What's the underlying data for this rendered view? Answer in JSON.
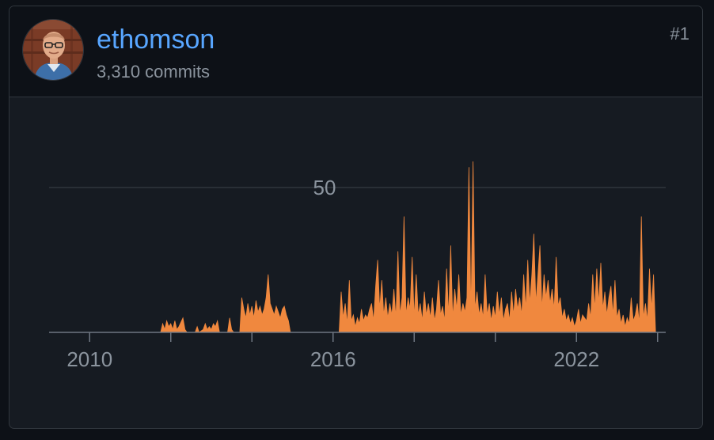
{
  "contributor": {
    "username": "ethomson",
    "commits_text": "3,310 commits",
    "rank": "#1"
  },
  "colors": {
    "accent": "#58a6ff",
    "area": "#f0883e",
    "grid": "#30363d",
    "muted": "#8b949e"
  },
  "chart_data": {
    "type": "area",
    "title": "",
    "xlabel": "",
    "ylabel": "",
    "ylim": [
      0,
      62
    ],
    "xlim": [
      2009,
      2024.2
    ],
    "y_ticks": [
      {
        "value": 50,
        "label": "50"
      }
    ],
    "x_ticks": [
      {
        "value": 2010,
        "label": "2010"
      },
      {
        "value": 2016,
        "label": "2016"
      },
      {
        "value": 2022,
        "label": "2022"
      }
    ],
    "x_minor_ticks": [
      2012,
      2014,
      2018,
      2020,
      2024
    ],
    "grid": true,
    "series": [
      {
        "values": [
          [
            2011.75,
            0
          ],
          [
            2011.8,
            3
          ],
          [
            2011.85,
            1
          ],
          [
            2011.9,
            4
          ],
          [
            2011.95,
            2
          ],
          [
            2012.0,
            3
          ],
          [
            2012.05,
            1
          ],
          [
            2012.1,
            4
          ],
          [
            2012.15,
            1
          ],
          [
            2012.2,
            2
          ],
          [
            2012.3,
            5
          ],
          [
            2012.35,
            1
          ],
          [
            2012.4,
            0
          ],
          [
            2012.6,
            0
          ],
          [
            2012.65,
            2
          ],
          [
            2012.7,
            0
          ],
          [
            2012.8,
            1
          ],
          [
            2012.85,
            3
          ],
          [
            2012.9,
            1
          ],
          [
            2012.95,
            2
          ],
          [
            2013.0,
            1
          ],
          [
            2013.05,
            3
          ],
          [
            2013.1,
            2
          ],
          [
            2013.15,
            4
          ],
          [
            2013.2,
            0
          ],
          [
            2013.4,
            0
          ],
          [
            2013.45,
            5
          ],
          [
            2013.5,
            1
          ],
          [
            2013.55,
            0
          ],
          [
            2013.7,
            0
          ],
          [
            2013.75,
            12
          ],
          [
            2013.8,
            8
          ],
          [
            2013.85,
            5
          ],
          [
            2013.9,
            10
          ],
          [
            2013.95,
            6
          ],
          [
            2014.0,
            9
          ],
          [
            2014.05,
            5
          ],
          [
            2014.1,
            11
          ],
          [
            2014.15,
            7
          ],
          [
            2014.2,
            9
          ],
          [
            2014.25,
            6
          ],
          [
            2014.3,
            8
          ],
          [
            2014.35,
            12
          ],
          [
            2014.4,
            20
          ],
          [
            2014.45,
            10
          ],
          [
            2014.5,
            8
          ],
          [
            2014.55,
            6
          ],
          [
            2014.6,
            9
          ],
          [
            2014.65,
            7
          ],
          [
            2014.7,
            5
          ],
          [
            2014.75,
            8
          ],
          [
            2014.8,
            9
          ],
          [
            2014.85,
            6
          ],
          [
            2014.9,
            4
          ],
          [
            2014.95,
            0
          ],
          [
            2016.15,
            0
          ],
          [
            2016.2,
            14
          ],
          [
            2016.25,
            5
          ],
          [
            2016.3,
            10
          ],
          [
            2016.35,
            3
          ],
          [
            2016.4,
            18
          ],
          [
            2016.45,
            4
          ],
          [
            2016.5,
            6
          ],
          [
            2016.55,
            2
          ],
          [
            2016.6,
            5
          ],
          [
            2016.65,
            3
          ],
          [
            2016.7,
            8
          ],
          [
            2016.75,
            4
          ],
          [
            2016.8,
            6
          ],
          [
            2016.85,
            5
          ],
          [
            2016.9,
            8
          ],
          [
            2016.95,
            10
          ],
          [
            2017.0,
            4
          ],
          [
            2017.05,
            16
          ],
          [
            2017.1,
            25
          ],
          [
            2017.15,
            8
          ],
          [
            2017.2,
            18
          ],
          [
            2017.25,
            6
          ],
          [
            2017.3,
            12
          ],
          [
            2017.35,
            5
          ],
          [
            2017.4,
            10
          ],
          [
            2017.45,
            6
          ],
          [
            2017.5,
            15
          ],
          [
            2017.55,
            5
          ],
          [
            2017.6,
            28
          ],
          [
            2017.65,
            6
          ],
          [
            2017.7,
            12
          ],
          [
            2017.75,
            40
          ],
          [
            2017.8,
            6
          ],
          [
            2017.85,
            12
          ],
          [
            2017.9,
            8
          ],
          [
            2017.95,
            26
          ],
          [
            2018.0,
            5
          ],
          [
            2018.05,
            20
          ],
          [
            2018.1,
            6
          ],
          [
            2018.15,
            10
          ],
          [
            2018.2,
            4
          ],
          [
            2018.25,
            14
          ],
          [
            2018.3,
            6
          ],
          [
            2018.35,
            10
          ],
          [
            2018.4,
            5
          ],
          [
            2018.45,
            12
          ],
          [
            2018.5,
            4
          ],
          [
            2018.55,
            8
          ],
          [
            2018.6,
            18
          ],
          [
            2018.65,
            6
          ],
          [
            2018.7,
            9
          ],
          [
            2018.75,
            4
          ],
          [
            2018.8,
            22
          ],
          [
            2018.85,
            6
          ],
          [
            2018.9,
            30
          ],
          [
            2018.95,
            5
          ],
          [
            2019.0,
            15
          ],
          [
            2019.05,
            8
          ],
          [
            2019.1,
            20
          ],
          [
            2019.15,
            6
          ],
          [
            2019.2,
            10
          ],
          [
            2019.25,
            7
          ],
          [
            2019.3,
            12
          ],
          [
            2019.35,
            57
          ],
          [
            2019.4,
            6
          ],
          [
            2019.45,
            59
          ],
          [
            2019.5,
            8
          ],
          [
            2019.55,
            14
          ],
          [
            2019.6,
            6
          ],
          [
            2019.65,
            10
          ],
          [
            2019.7,
            5
          ],
          [
            2019.75,
            20
          ],
          [
            2019.8,
            6
          ],
          [
            2019.85,
            10
          ],
          [
            2019.9,
            4
          ],
          [
            2019.95,
            9
          ],
          [
            2020.0,
            5
          ],
          [
            2020.05,
            14
          ],
          [
            2020.1,
            6
          ],
          [
            2020.15,
            12
          ],
          [
            2020.2,
            4
          ],
          [
            2020.25,
            8
          ],
          [
            2020.3,
            10
          ],
          [
            2020.35,
            4
          ],
          [
            2020.4,
            14
          ],
          [
            2020.45,
            6
          ],
          [
            2020.5,
            15
          ],
          [
            2020.55,
            8
          ],
          [
            2020.6,
            12
          ],
          [
            2020.65,
            6
          ],
          [
            2020.7,
            20
          ],
          [
            2020.75,
            8
          ],
          [
            2020.8,
            25
          ],
          [
            2020.85,
            10
          ],
          [
            2020.9,
            20
          ],
          [
            2020.95,
            34
          ],
          [
            2021.0,
            10
          ],
          [
            2021.05,
            20
          ],
          [
            2021.1,
            30
          ],
          [
            2021.15,
            8
          ],
          [
            2021.2,
            20
          ],
          [
            2021.25,
            12
          ],
          [
            2021.3,
            18
          ],
          [
            2021.35,
            10
          ],
          [
            2021.4,
            15
          ],
          [
            2021.45,
            8
          ],
          [
            2021.5,
            26
          ],
          [
            2021.55,
            9
          ],
          [
            2021.6,
            12
          ],
          [
            2021.65,
            5
          ],
          [
            2021.7,
            8
          ],
          [
            2021.75,
            4
          ],
          [
            2021.8,
            6
          ],
          [
            2021.85,
            3
          ],
          [
            2021.9,
            5
          ],
          [
            2021.95,
            2
          ],
          [
            2022.0,
            4
          ],
          [
            2022.05,
            8
          ],
          [
            2022.1,
            3
          ],
          [
            2022.15,
            6
          ],
          [
            2022.2,
            5
          ],
          [
            2022.25,
            4
          ],
          [
            2022.3,
            10
          ],
          [
            2022.35,
            5
          ],
          [
            2022.4,
            20
          ],
          [
            2022.45,
            8
          ],
          [
            2022.5,
            22
          ],
          [
            2022.55,
            10
          ],
          [
            2022.6,
            24
          ],
          [
            2022.65,
            8
          ],
          [
            2022.7,
            14
          ],
          [
            2022.75,
            6
          ],
          [
            2022.8,
            12
          ],
          [
            2022.85,
            16
          ],
          [
            2022.9,
            6
          ],
          [
            2022.95,
            18
          ],
          [
            2023.0,
            5
          ],
          [
            2023.05,
            8
          ],
          [
            2023.1,
            3
          ],
          [
            2023.15,
            6
          ],
          [
            2023.2,
            2
          ],
          [
            2023.25,
            5
          ],
          [
            2023.3,
            3
          ],
          [
            2023.35,
            12
          ],
          [
            2023.4,
            4
          ],
          [
            2023.45,
            6
          ],
          [
            2023.5,
            10
          ],
          [
            2023.55,
            3
          ],
          [
            2023.6,
            40
          ],
          [
            2023.65,
            5
          ],
          [
            2023.7,
            10
          ],
          [
            2023.75,
            4
          ],
          [
            2023.8,
            22
          ],
          [
            2023.85,
            8
          ],
          [
            2023.9,
            20
          ],
          [
            2023.95,
            0
          ]
        ]
      }
    ]
  }
}
